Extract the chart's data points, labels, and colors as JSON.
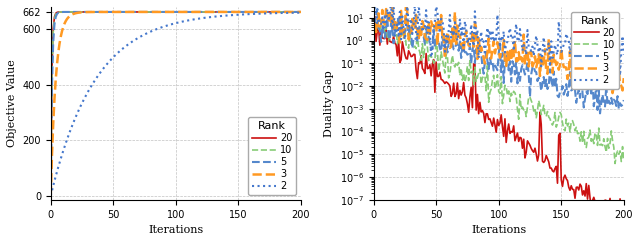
{
  "xlabel": "Iterations",
  "ylabel_left": "Objective Value",
  "ylabel_right": "Duality Gap",
  "xlim": [
    0,
    200
  ],
  "max_val": 662,
  "ranks": [
    20,
    10,
    5,
    3,
    2
  ],
  "colors": {
    "20": "#cc1111",
    "10": "#88cc77",
    "5": "#5588cc",
    "3": "#ff9922",
    "2": "#4477cc"
  },
  "legend_title": "Rank",
  "grid_color": "#bbbbbb",
  "background_color": "#ffffff",
  "tick_label_size": 7,
  "axis_label_size": 8,
  "legend_fontsize": 7
}
